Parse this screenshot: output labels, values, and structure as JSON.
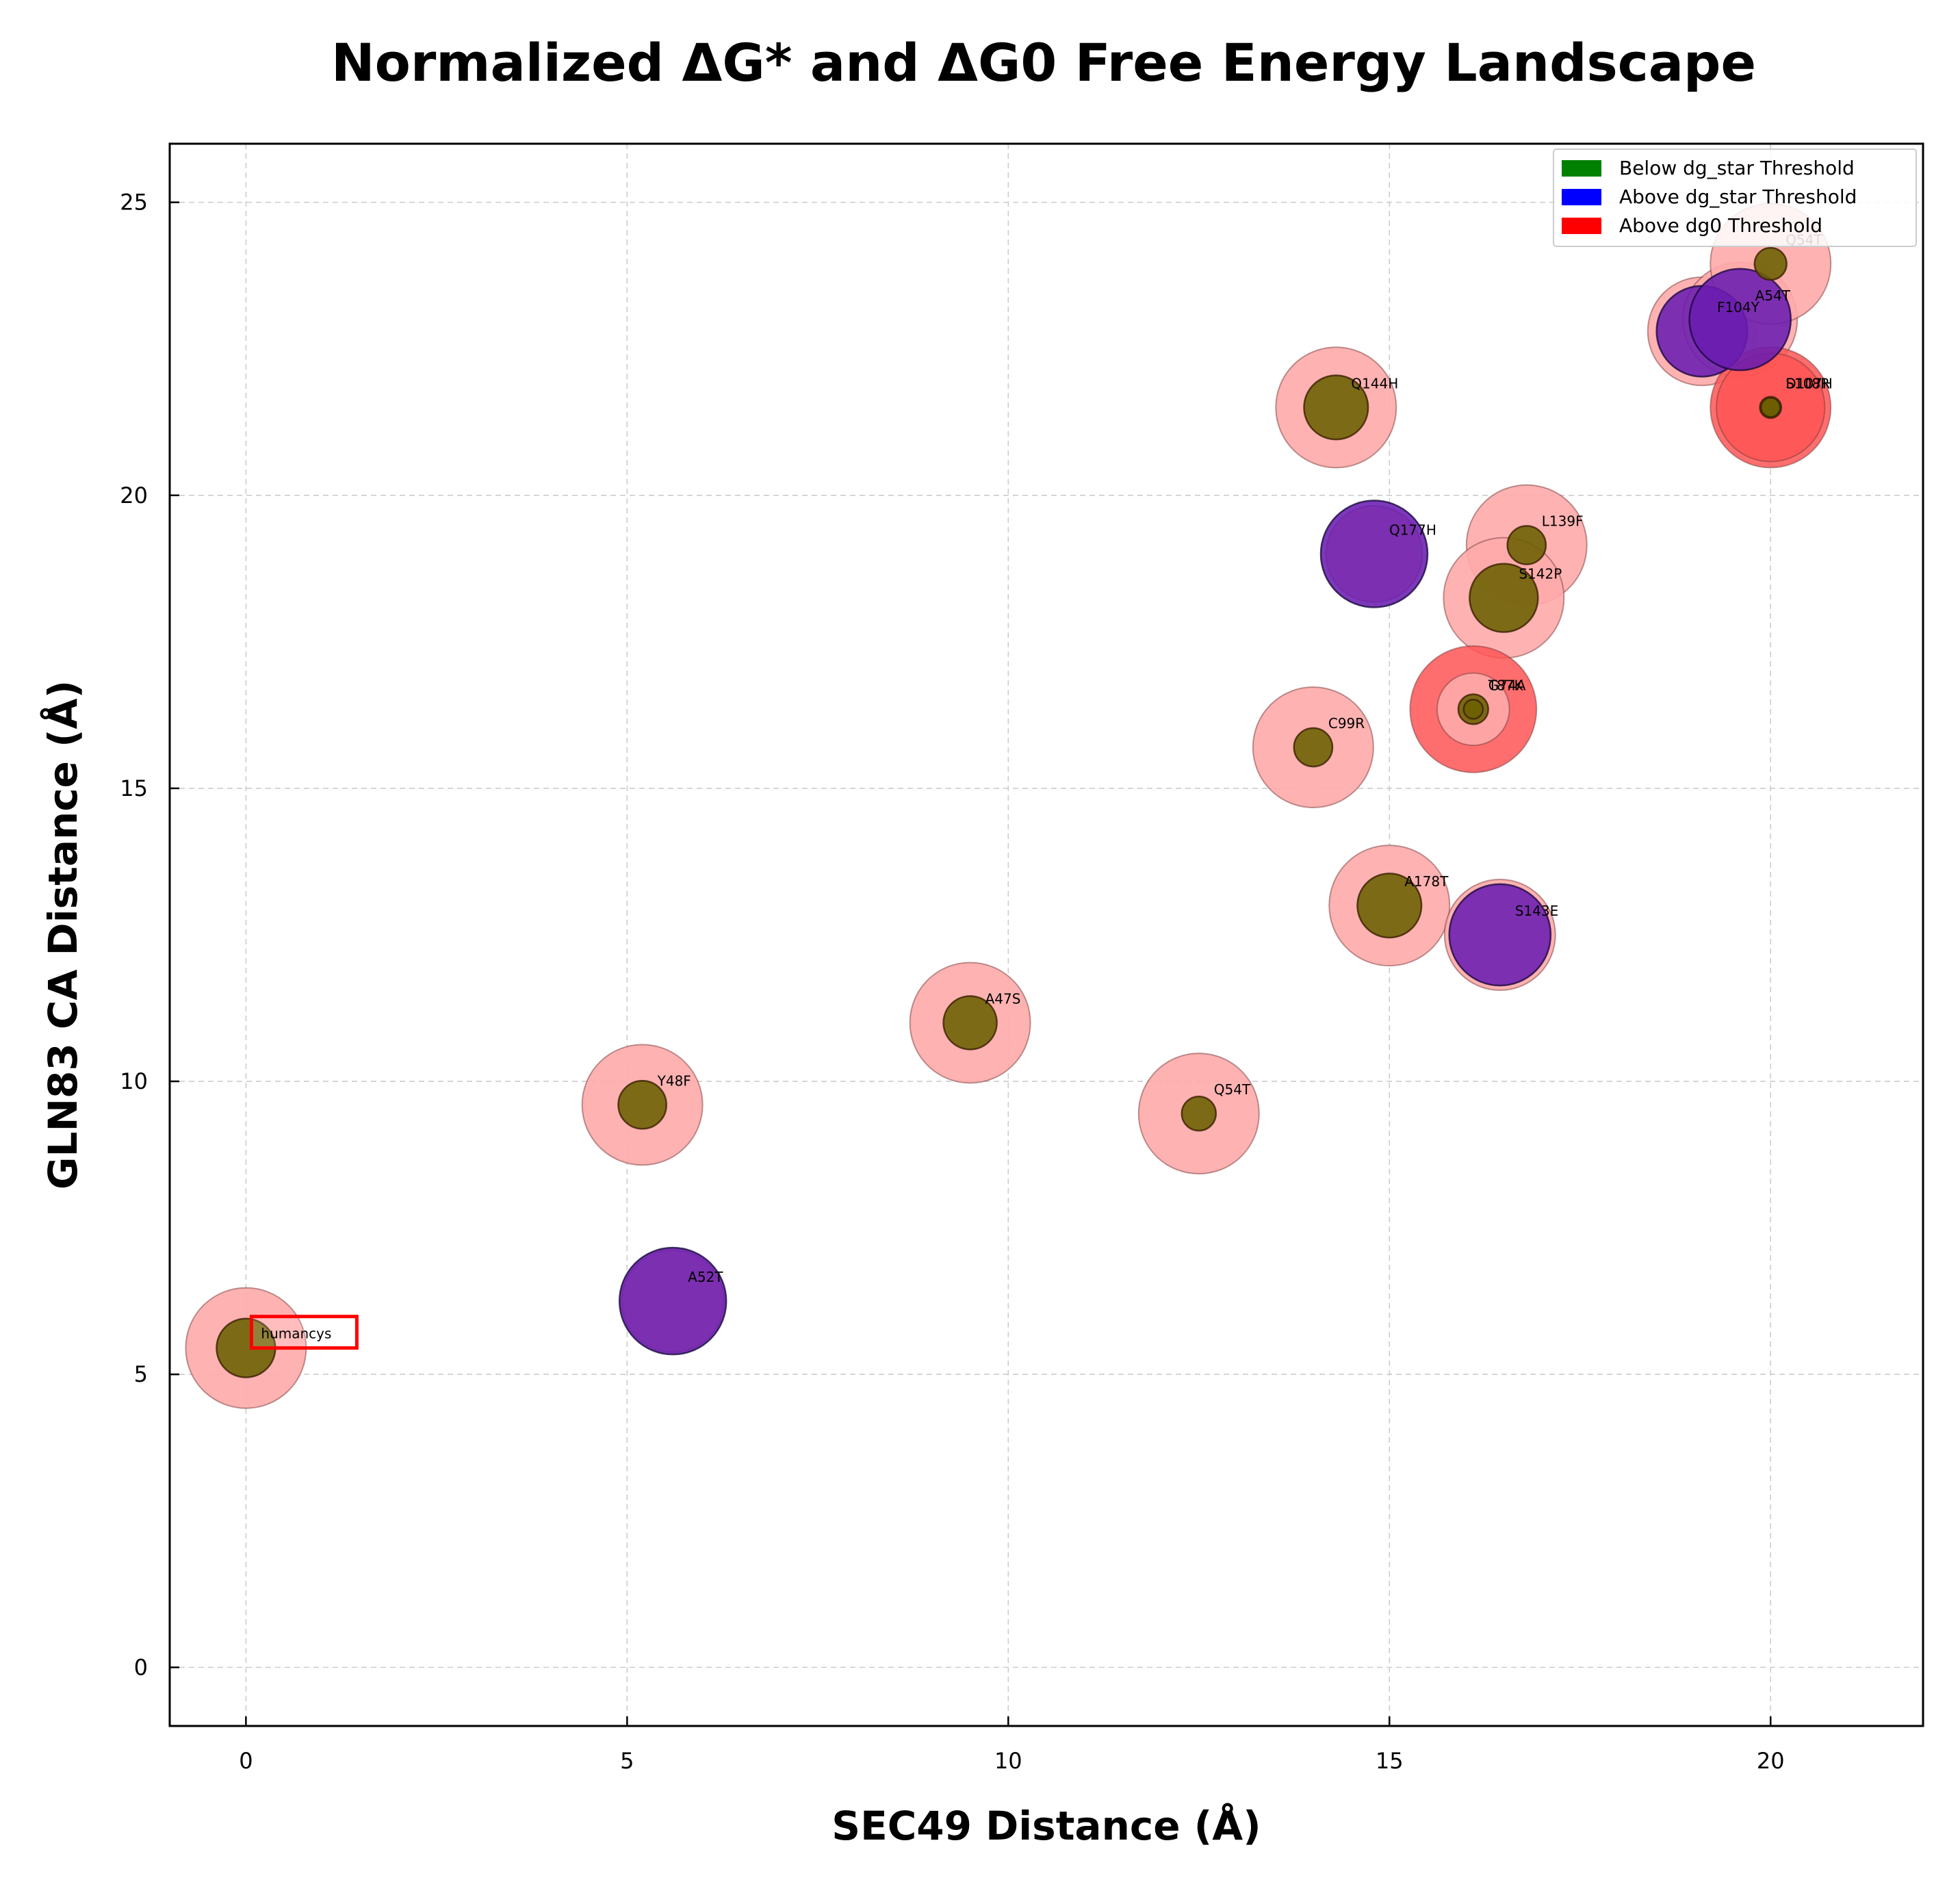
{
  "chart_data": {
    "type": "scatter",
    "title": "Normalized ΔG* and ΔG0 Free Energy Landscape",
    "xlabel": "SEC49 Distance (Å)",
    "ylabel": "GLN83 CA Distance (Å)",
    "xlim": [
      -1,
      22
    ],
    "ylim": [
      -1,
      26
    ],
    "xticks": [
      0,
      5,
      10,
      15,
      20
    ],
    "yticks": [
      0,
      5,
      10,
      15,
      20,
      25
    ],
    "grid": true,
    "legend_position": "top-right",
    "legend": [
      {
        "label": "Below dg_star Threshold",
        "color": "#008000"
      },
      {
        "label": "Above dg_star Threshold",
        "color": "#0000ff"
      },
      {
        "label": "Above dg0 Threshold",
        "color": "#ff0000"
      }
    ],
    "colors": {
      "dg0_below": "#ffaaaa",
      "dg0_above": "#ff5555",
      "dg_star_below": "#6b6000",
      "dg_star_above": "#6a1cb0"
    },
    "points": [
      {
        "label": "humancys",
        "x": 0,
        "y": 5.45,
        "dg0_size": 1.0,
        "dg_star_size": 0.55,
        "dg0_above": false,
        "dg_star_above": false,
        "highlight": true
      },
      {
        "label": "Y48F",
        "x": 5.2,
        "y": 9.6,
        "dg0_size": 1.0,
        "dg_star_size": 0.45,
        "dg0_above": false,
        "dg_star_above": false
      },
      {
        "label": "A52T",
        "x": 5.6,
        "y": 6.25,
        "dg0_size": 0.85,
        "dg_star_size": 1.0,
        "dg0_above": false,
        "dg_star_above": true
      },
      {
        "label": "A47S",
        "x": 9.5,
        "y": 11.0,
        "dg0_size": 1.0,
        "dg_star_size": 0.5,
        "dg0_above": false,
        "dg_star_above": false
      },
      {
        "label": "Q54T",
        "x": 12.5,
        "y": 9.45,
        "dg0_size": 1.0,
        "dg_star_size": 0.32,
        "dg0_above": false,
        "dg_star_above": false
      },
      {
        "label": "C99R",
        "x": 14.0,
        "y": 15.7,
        "dg0_size": 1.0,
        "dg_star_size": 0.36,
        "dg0_above": false,
        "dg_star_above": false
      },
      {
        "label": "A178T",
        "x": 15.0,
        "y": 13.0,
        "dg0_size": 1.0,
        "dg_star_size": 0.6,
        "dg0_above": false,
        "dg_star_above": false
      },
      {
        "label": "S143E",
        "x": 16.45,
        "y": 12.5,
        "dg0_size": 0.92,
        "dg_star_size": 0.95,
        "dg0_above": false,
        "dg_star_above": true
      },
      {
        "label": "Q144H",
        "x": 14.3,
        "y": 21.5,
        "dg0_size": 1.0,
        "dg_star_size": 0.6,
        "dg0_above": false,
        "dg_star_above": false
      },
      {
        "label": "Q177H",
        "x": 14.8,
        "y": 19.0,
        "dg0_size": 0.8,
        "dg_star_size": 1.0,
        "dg0_above": false,
        "dg_star_above": true
      },
      {
        "label": "L139F",
        "x": 16.8,
        "y": 19.15,
        "dg0_size": 1.0,
        "dg_star_size": 0.36,
        "dg0_above": false,
        "dg_star_above": false
      },
      {
        "label": "S142P",
        "x": 16.5,
        "y": 18.25,
        "dg0_size": 1.0,
        "dg_star_size": 0.64,
        "dg0_above": false,
        "dg_star_above": false
      },
      {
        "label": "T87K",
        "x": 16.1,
        "y": 16.35,
        "dg0_size": 1.05,
        "dg_star_size": 0.28,
        "dg0_above": true,
        "dg_star_above": false
      },
      {
        "label": "G74A",
        "x": 16.1,
        "y": 16.35,
        "dg0_size": 0.6,
        "dg_star_size": 0.18,
        "dg0_above": false,
        "dg_star_above": false
      },
      {
        "label": "F104Y",
        "x": 19.1,
        "y": 22.8,
        "dg0_size": 0.9,
        "dg_star_size": 0.85,
        "dg0_above": false,
        "dg_star_above": true
      },
      {
        "label": "A54T",
        "x": 19.6,
        "y": 23.0,
        "dg0_size": 0.95,
        "dg_star_size": 0.95,
        "dg0_above": false,
        "dg_star_above": true
      },
      {
        "label": "Q54T",
        "x": 20.0,
        "y": 23.95,
        "dg0_size": 1.0,
        "dg_star_size": 0.3,
        "dg0_above": false,
        "dg_star_above": false
      },
      {
        "label": "S108R",
        "x": 20.0,
        "y": 21.5,
        "dg0_size": 1.0,
        "dg_star_size": 0.2,
        "dg0_above": true,
        "dg_star_above": false
      },
      {
        "label": "D107H",
        "x": 20.0,
        "y": 21.5,
        "dg0_size": 0.9,
        "dg_star_size": 0.18,
        "dg0_above": true,
        "dg_star_above": false
      }
    ]
  }
}
